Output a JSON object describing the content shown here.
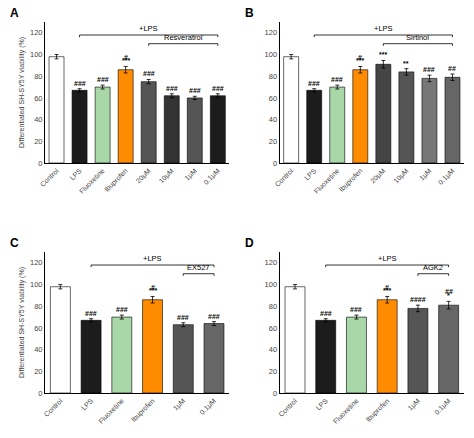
{
  "chart_data": [
    {
      "type": "bar",
      "panel_label": "A",
      "ylabel": "Differentiated SH-SY5Y viability (%)",
      "categories": [
        "Control",
        "LPS",
        "Fluoxetine",
        "Ibuprofen",
        "20μM",
        "10μM",
        "1μM",
        "0.1μM"
      ],
      "values": [
        98,
        67,
        70,
        86,
        75,
        62,
        60,
        62
      ],
      "errors": [
        2.0,
        1.5,
        1.8,
        3.0,
        2.0,
        1.8,
        1.5,
        1.8
      ],
      "colors": [
        "#ffffff",
        "#1c1c1c",
        "#a8d8a8",
        "#FF8C00",
        "#555555",
        "#333333",
        "#555555",
        "#1c1c1c"
      ],
      "significance": [
        null,
        [
          "###"
        ],
        [
          "###"
        ],
        [
          "#",
          "***"
        ],
        [
          "###"
        ],
        [
          "###"
        ],
        [
          "###"
        ],
        [
          "###"
        ]
      ],
      "brackets": [
        {
          "text": "+LPS",
          "from": "LPS",
          "to": "0.1μM"
        },
        {
          "text": "Resveratrol",
          "from": "20μM",
          "to": "0.1μM"
        }
      ],
      "ylim": [
        0,
        130
      ],
      "yticks": [
        0,
        20,
        40,
        60,
        80,
        100,
        120
      ],
      "grid": false
    },
    {
      "type": "bar",
      "panel_label": "B",
      "categories": [
        "Control",
        "LPS",
        "Fluoxetine",
        "Ibuprofen",
        "20μM",
        "10μM",
        "1μM",
        "0.1μM"
      ],
      "values": [
        98,
        67,
        70,
        86,
        91,
        84,
        78,
        79
      ],
      "errors": [
        2.0,
        1.5,
        1.8,
        3.0,
        3.5,
        3.0,
        3.0,
        3.0
      ],
      "colors": [
        "#ffffff",
        "#1c1c1c",
        "#a8d8a8",
        "#FF8C00",
        "#444444",
        "#555555",
        "#777777",
        "#666666"
      ],
      "significance": [
        null,
        [
          "###"
        ],
        [
          "###"
        ],
        [
          "#",
          "***"
        ],
        [
          "***"
        ],
        [
          "**"
        ],
        [
          "###"
        ],
        [
          "##"
        ]
      ],
      "brackets": [
        {
          "text": "+LPS",
          "from": "LPS",
          "to": "0.1μM"
        },
        {
          "text": "Sirtinol",
          "from": "20μM",
          "to": "0.1μM"
        }
      ],
      "ylim": [
        0,
        130
      ],
      "yticks": [
        0,
        20,
        40,
        60,
        80,
        100,
        120
      ],
      "grid": false
    },
    {
      "type": "bar",
      "panel_label": "C",
      "ylabel": "Differentiated SH-SY5Y viability (%)",
      "categories": [
        "Control",
        "LPS",
        "Fluoxetine",
        "Ibuprofen",
        "1μM",
        "0.1μM"
      ],
      "values": [
        98,
        67,
        70,
        86,
        63,
        64
      ],
      "errors": [
        2.0,
        1.5,
        1.8,
        3.0,
        1.8,
        1.8
      ],
      "colors": [
        "#ffffff",
        "#1c1c1c",
        "#a8d8a8",
        "#FF8C00",
        "#555555",
        "#666666"
      ],
      "significance": [
        null,
        [
          "###"
        ],
        [
          "###"
        ],
        [
          "#",
          "***"
        ],
        [
          "###"
        ],
        [
          "###"
        ]
      ],
      "brackets": [
        {
          "text": "+LPS",
          "from": "LPS",
          "to": "0.1μM"
        },
        {
          "text": "EX527",
          "from": "1μM",
          "to": "0.1μM"
        }
      ],
      "ylim": [
        0,
        130
      ],
      "yticks": [
        0,
        20,
        40,
        60,
        80,
        100,
        120
      ],
      "grid": false
    },
    {
      "type": "bar",
      "panel_label": "D",
      "categories": [
        "Control",
        "LPS",
        "Fluoxetine",
        "Ibuprofen",
        "1μM",
        "0.1μM"
      ],
      "values": [
        98,
        67,
        70,
        86,
        78,
        81
      ],
      "errors": [
        2.0,
        1.5,
        1.8,
        3.0,
        3.0,
        3.5
      ],
      "colors": [
        "#ffffff",
        "#1c1c1c",
        "#a8d8a8",
        "#FF8C00",
        "#555555",
        "#666666"
      ],
      "significance": [
        null,
        [
          "###"
        ],
        [
          "###"
        ],
        [
          "#",
          "***"
        ],
        [
          "####"
        ],
        [
          "##",
          "*"
        ]
      ],
      "brackets": [
        {
          "text": "+LPS",
          "from": "LPS",
          "to": "0.1μM"
        },
        {
          "text": "AGK2",
          "from": "1μM",
          "to": "0.1μM"
        }
      ],
      "ylim": [
        0,
        130
      ],
      "yticks": [
        0,
        20,
        40,
        60,
        80,
        100,
        120
      ],
      "grid": false
    }
  ]
}
